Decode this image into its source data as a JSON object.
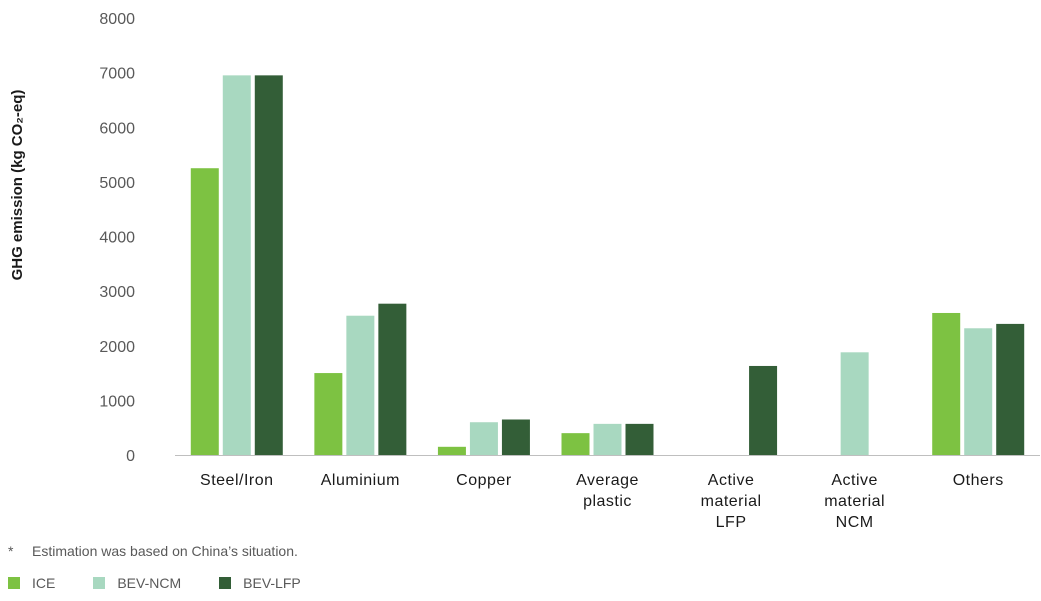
{
  "chart_data": {
    "type": "bar",
    "title": "",
    "xlabel": "",
    "ylabel": "GHG emission (kg CO₂-eq)",
    "ylim": [
      0,
      8000
    ],
    "yticks": [
      0,
      1000,
      2000,
      3000,
      4000,
      5000,
      6000,
      7000,
      8000
    ],
    "grid": false,
    "legend_position": "bottom-left",
    "categories": [
      [
        "Steel/Iron"
      ],
      [
        "Aluminium"
      ],
      [
        "Copper"
      ],
      [
        "Average",
        "plastic"
      ],
      [
        "Active",
        "material",
        "LFP"
      ],
      [
        "Active",
        "material",
        "NCM"
      ],
      [
        "Others"
      ]
    ],
    "series": [
      {
        "name": "ICE",
        "color": "#7dc242",
        "values": [
          5250,
          1500,
          150,
          400,
          0,
          0,
          2600
        ]
      },
      {
        "name": "BEV-NCM",
        "color": "#a8d8c0",
        "values": [
          6950,
          2550,
          600,
          570,
          0,
          1880,
          2320
        ]
      },
      {
        "name": "BEV-LFP",
        "color": "#335e37",
        "values": [
          6950,
          2770,
          650,
          570,
          1630,
          0,
          2400
        ]
      }
    ]
  },
  "footnote": {
    "marker": "*",
    "text": "Estimation was based on China’s situation."
  }
}
